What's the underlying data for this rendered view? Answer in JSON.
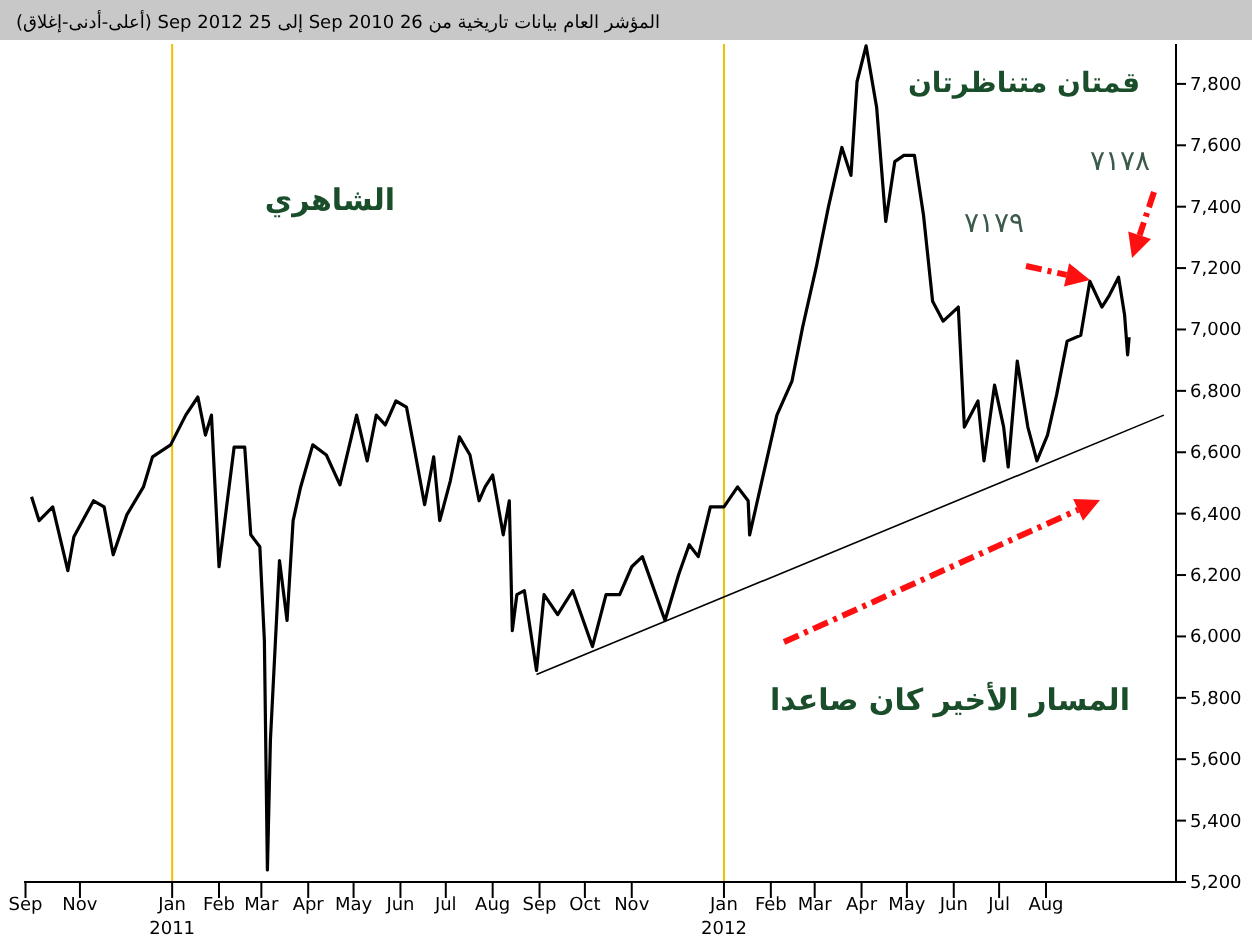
{
  "chart_data": {
    "type": "line",
    "title": "المؤشر العام بيانات تاريخية  من 26 Sep 2010 إلى 25 Sep 2012  (أعلى-أدنى-إغلاق)",
    "x": [
      "2010-09-30",
      "2010-10-05",
      "2010-10-14",
      "2010-10-24",
      "2010-10-28",
      "2010-11-10",
      "2010-11-17",
      "2010-11-23",
      "2010-12-02",
      "2010-12-13",
      "2010-12-19",
      "2010-12-31",
      "2011-01-10",
      "2011-01-18",
      "2011-01-23",
      "2011-01-27",
      "2011-02-01",
      "2011-02-11",
      "2011-02-18",
      "2011-02-22",
      "2011-02-28",
      "2011-03-03",
      "2011-03-05",
      "2011-03-07",
      "2011-03-13",
      "2011-03-18",
      "2011-03-22",
      "2011-03-27",
      "2011-04-04",
      "2011-04-13",
      "2011-04-22",
      "2011-05-03",
      "2011-05-10",
      "2011-05-16",
      "2011-05-22",
      "2011-05-29",
      "2011-06-05",
      "2011-06-10",
      "2011-06-17",
      "2011-06-23",
      "2011-06-27",
      "2011-07-04",
      "2011-07-10",
      "2011-07-17",
      "2011-07-23",
      "2011-07-27",
      "2011-08-01",
      "2011-08-08",
      "2011-08-12",
      "2011-08-14",
      "2011-08-17",
      "2011-08-22",
      "2011-08-30",
      "2011-09-04",
      "2011-09-13",
      "2011-09-23",
      "2011-10-06",
      "2011-10-15",
      "2011-10-24",
      "2011-11-01",
      "2011-11-08",
      "2011-11-23",
      "2011-12-02",
      "2011-12-09",
      "2011-12-15",
      "2011-12-23",
      "2012-01-01",
      "2012-01-10",
      "2012-01-17",
      "2012-01-18",
      "2012-01-24",
      "2012-02-05",
      "2012-02-15",
      "2012-02-22",
      "2012-03-02",
      "2012-03-10",
      "2012-03-19",
      "2012-03-25",
      "2012-03-29",
      "2012-04-04",
      "2012-04-11",
      "2012-04-17",
      "2012-04-23",
      "2012-04-29",
      "2012-05-06",
      "2012-05-12",
      "2012-05-18",
      "2012-05-25",
      "2012-06-04",
      "2012-06-08",
      "2012-06-17",
      "2012-06-21",
      "2012-06-28",
      "2012-07-04",
      "2012-07-07",
      "2012-07-13",
      "2012-07-20",
      "2012-07-26",
      "2012-08-02",
      "2012-08-08",
      "2012-08-15",
      "2012-08-24",
      "2012-08-30",
      "2012-09-07",
      "2012-09-12",
      "2012-09-18",
      "2012-09-22",
      "2012-09-24",
      "2012-09-25"
    ],
    "series": [
      {
        "color": "#000000",
        "values": [
          6455,
          6377,
          6422,
          6214,
          6325,
          6442,
          6422,
          6266,
          6396,
          6487,
          6585,
          6624,
          6721,
          6780,
          6656,
          6721,
          6227,
          6617,
          6617,
          6331,
          6292,
          5987,
          5239,
          5662,
          6247,
          6052,
          6377,
          6487,
          6624,
          6591,
          6494,
          6721,
          6572,
          6721,
          6689,
          6767,
          6747,
          6617,
          6429,
          6585,
          6377,
          6507,
          6650,
          6591,
          6442,
          6487,
          6526,
          6331,
          6442,
          6019,
          6136,
          6149,
          5889,
          6136,
          6071,
          6149,
          5967,
          6136,
          6136,
          6227,
          6260,
          6052,
          6201,
          6299,
          6260,
          6422,
          6422,
          6487,
          6442,
          6331,
          6461,
          6721,
          6832,
          7007,
          7202,
          7397,
          7593,
          7502,
          7807,
          7924,
          7723,
          7352,
          7547,
          7567,
          7567,
          7372,
          7092,
          7027,
          7073,
          6682,
          6767,
          6572,
          6819,
          6682,
          6552,
          6897,
          6682,
          6572,
          6656,
          6786,
          6962,
          6981,
          7157,
          7073,
          7112,
          7170,
          7047,
          6917,
          6975
        ]
      },
      {
        "type": "line",
        "color": "#000000",
        "x": [
          "2011-08-30",
          "2012-10-18"
        ],
        "values": [
          5876,
          6721
        ]
      }
    ],
    "xlim": [
      "2010-09-25",
      "2012-10-26"
    ],
    "ylim": [
      5200,
      7930
    ],
    "xticks": [
      {
        "value": "2010-09-26",
        "label": "Sep"
      },
      {
        "value": "2010-11-01",
        "label": "Nov"
      },
      {
        "value": "2011-01-01",
        "label": "Jan\n2011"
      },
      {
        "value": "2011-02-01",
        "label": "Feb"
      },
      {
        "value": "2011-03-01",
        "label": "Mar"
      },
      {
        "value": "2011-04-01",
        "label": "Apr"
      },
      {
        "value": "2011-05-01",
        "label": "May"
      },
      {
        "value": "2011-06-01",
        "label": "Jun"
      },
      {
        "value": "2011-07-01",
        "label": "Jul"
      },
      {
        "value": "2011-08-01",
        "label": "Aug"
      },
      {
        "value": "2011-09-01",
        "label": "Sep"
      },
      {
        "value": "2011-10-01",
        "label": "Oct"
      },
      {
        "value": "2011-11-01",
        "label": "Nov"
      },
      {
        "value": "2012-01-01",
        "label": "Jan\n2012"
      },
      {
        "value": "2012-02-01",
        "label": "Feb"
      },
      {
        "value": "2012-03-01",
        "label": "Mar"
      },
      {
        "value": "2012-04-01",
        "label": "Apr"
      },
      {
        "value": "2012-05-01",
        "label": "May"
      },
      {
        "value": "2012-06-01",
        "label": "Jun"
      },
      {
        "value": "2012-07-01",
        "label": "Jul"
      },
      {
        "value": "2012-08-01",
        "label": "Aug"
      }
    ],
    "yticks": [
      {
        "value": 5200,
        "label": "5,200"
      },
      {
        "value": 5400,
        "label": "5,400"
      },
      {
        "value": 5600,
        "label": "5,600"
      },
      {
        "value": 5800,
        "label": "5,800"
      },
      {
        "value": 6000,
        "label": "6,000"
      },
      {
        "value": 6200,
        "label": "6,200"
      },
      {
        "value": 6400,
        "label": "6,400"
      },
      {
        "value": 6600,
        "label": "6,600"
      },
      {
        "value": 6800,
        "label": "6,800"
      },
      {
        "value": 7000,
        "label": "7,000"
      },
      {
        "value": 7200,
        "label": "7,200"
      },
      {
        "value": 7400,
        "label": "7,400"
      },
      {
        "value": 7600,
        "label": "7,600"
      },
      {
        "value": 7800,
        "label": "7,800"
      }
    ],
    "ref_lines": [
      {
        "axis": "x",
        "value": "2011-01-01",
        "color": "#f0c000"
      },
      {
        "axis": "x",
        "value": "2012-01-01",
        "color": "#f0c000"
      }
    ],
    "annotations": [
      "الشاهري",
      "قمتان متناظرتان",
      "٧١٧٨",
      "٧١٧٩",
      "المسار الأخير كان صاعدا"
    ]
  }
}
